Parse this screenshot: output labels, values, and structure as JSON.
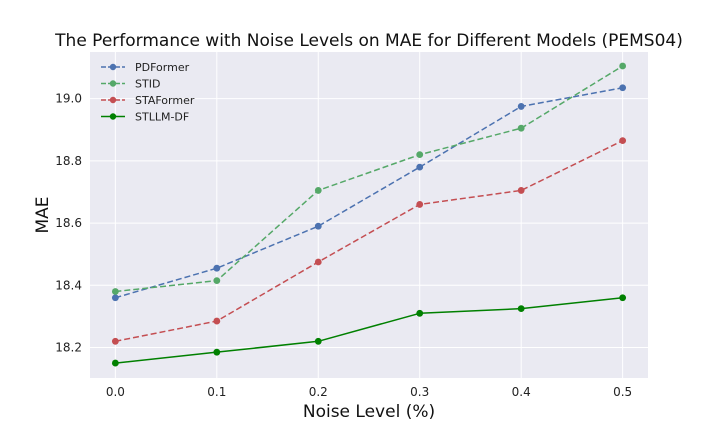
{
  "chart_data": {
    "type": "line",
    "title": "The Performance with Noise Levels on MAE for Different Models (PEMS04)",
    "xlabel": "Noise Level (%)",
    "ylabel": "MAE",
    "x": [
      0.0,
      0.1,
      0.2,
      0.3,
      0.4,
      0.5
    ],
    "x_tick_labels": [
      "0.0",
      "0.1",
      "0.2",
      "0.3",
      "0.4",
      "0.5"
    ],
    "xlim": [
      -0.025,
      0.525
    ],
    "y_ticks": [
      18.2,
      18.4,
      18.6,
      18.8,
      19.0
    ],
    "y_tick_labels": [
      "18.2",
      "18.4",
      "18.6",
      "18.8",
      "19.0"
    ],
    "ylim": [
      18.102,
      19.15
    ],
    "grid": true,
    "legend_location": "top-left",
    "series": [
      {
        "name": "PDFormer",
        "values": [
          18.36,
          18.455,
          18.59,
          18.78,
          18.975,
          19.035
        ],
        "color": "#4c72b0",
        "linestyle": "dashed"
      },
      {
        "name": "STID",
        "values": [
          18.38,
          18.415,
          18.705,
          18.82,
          18.905,
          19.105
        ],
        "color": "#55a868",
        "linestyle": "dashed"
      },
      {
        "name": "STAFormer",
        "values": [
          18.22,
          18.285,
          18.475,
          18.66,
          18.705,
          18.865
        ],
        "color": "#c44e52",
        "linestyle": "dashed"
      },
      {
        "name": "STLLM-DF",
        "values": [
          18.15,
          18.185,
          18.22,
          18.31,
          18.325,
          18.36
        ],
        "color": "#008000",
        "linestyle": "solid"
      }
    ]
  }
}
